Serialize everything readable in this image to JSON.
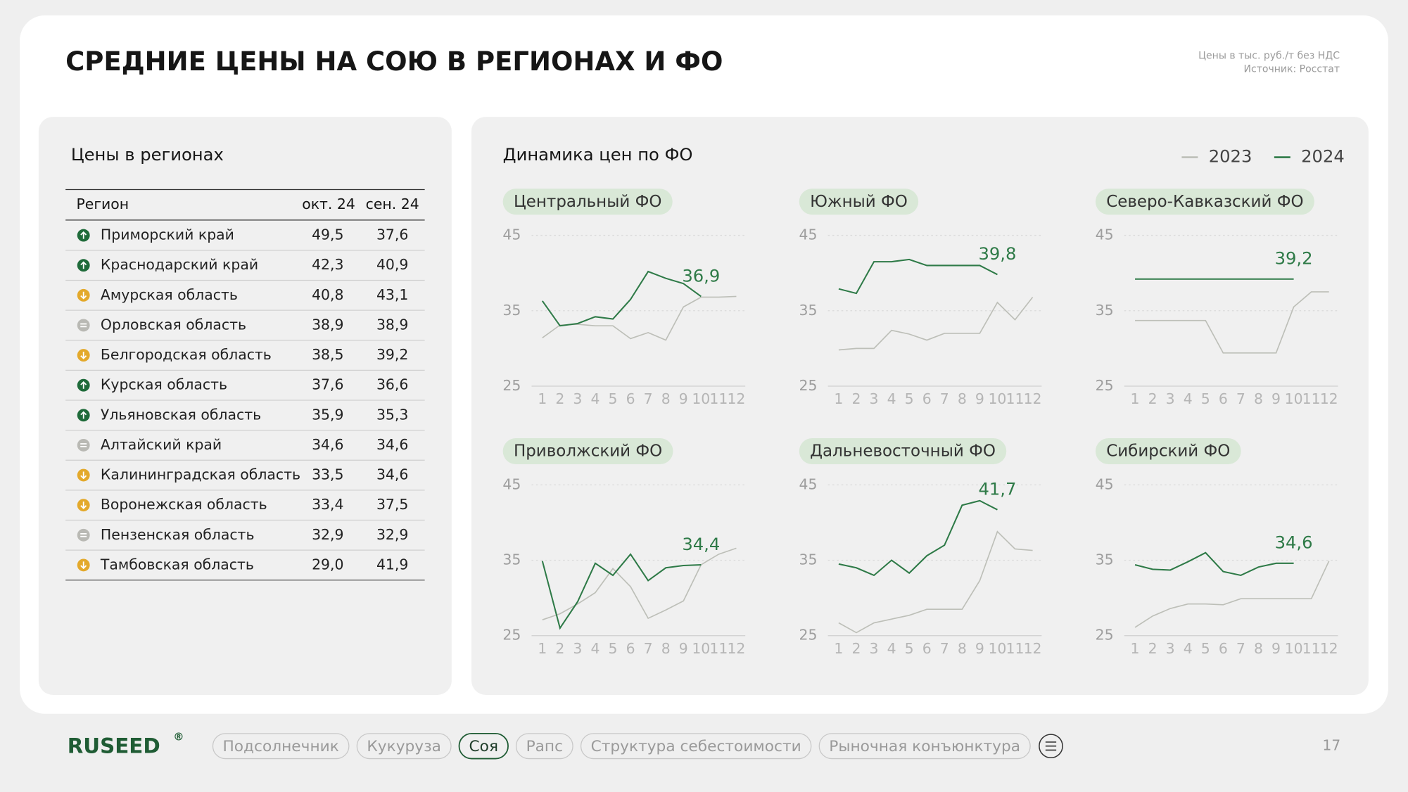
{
  "title": "СРЕДНИЕ ЦЕНЫ НА СОЮ В РЕГИОНАХ И ФО",
  "notes": [
    "Цены в тыс. руб./т без НДС",
    "Источник: Росстат"
  ],
  "table": {
    "title": "Цены в регионах",
    "header": [
      "Регион",
      "окт. 24",
      "сен. 24"
    ],
    "rows": [
      {
        "trend": "up",
        "cells": [
          "Приморский край",
          "49,5",
          "37,6"
        ]
      },
      {
        "trend": "up",
        "cells": [
          "Краснодарский край",
          "42,3",
          "40,9"
        ]
      },
      {
        "trend": "down",
        "cells": [
          "Амурская область",
          "40,8",
          "43,1"
        ]
      },
      {
        "trend": "flat",
        "cells": [
          "Орловская область",
          "38,9",
          "38,9"
        ]
      },
      {
        "trend": "down",
        "cells": [
          "Белгородская область",
          "38,5",
          "39,2"
        ]
      },
      {
        "trend": "up",
        "cells": [
          "Курская область",
          "37,6",
          "36,6"
        ]
      },
      {
        "trend": "up",
        "cells": [
          "Ульяновская область",
          "35,9",
          "35,3"
        ]
      },
      {
        "trend": "flat",
        "cells": [
          "Алтайский край",
          "34,6",
          "34,6"
        ]
      },
      {
        "trend": "down",
        "cells": [
          "Калининградская область",
          "33,5",
          "34,6"
        ]
      },
      {
        "trend": "down",
        "cells": [
          "Воронежская область",
          "33,4",
          "37,5"
        ]
      },
      {
        "trend": "flat",
        "cells": [
          "Пензенская область",
          "32,9",
          "32,9"
        ]
      },
      {
        "trend": "down",
        "cells": [
          "Тамбовская область",
          "29,0",
          "41,9"
        ]
      }
    ]
  },
  "charts_title": "Динамика цен по ФО",
  "chart_data": [
    {
      "type": "line",
      "title": "Центральный ФО",
      "x": [
        1,
        2,
        3,
        4,
        5,
        6,
        7,
        8,
        9,
        10,
        11,
        12
      ],
      "xlim": [
        1,
        12
      ],
      "xticks": [
        1,
        2,
        3,
        4,
        5,
        6,
        7,
        8,
        9,
        10,
        11,
        12
      ],
      "ylim": [
        25,
        45
      ],
      "yticks": [
        25,
        35,
        45
      ],
      "grid": true,
      "series": [
        {
          "name": "2023",
          "color": "#bdbfb8",
          "values": [
            31.4,
            33.1,
            33.2,
            33.0,
            33.0,
            31.3,
            32.1,
            31.1,
            35.5,
            36.8,
            36.8,
            36.9
          ]
        },
        {
          "name": "2024",
          "color": "#2e7a47",
          "values": [
            36.3,
            33.0,
            33.3,
            34.2,
            33.9,
            36.5,
            40.2,
            39.3,
            38.6,
            36.9,
            null,
            null
          ],
          "value_labels": [
            null,
            null,
            null,
            null,
            null,
            null,
            null,
            null,
            null,
            "36,9",
            null,
            null
          ]
        }
      ]
    },
    {
      "type": "line",
      "title": "Южный ФО",
      "x": [
        1,
        2,
        3,
        4,
        5,
        6,
        7,
        8,
        9,
        10,
        11,
        12
      ],
      "xlim": [
        1,
        12
      ],
      "xticks": [
        1,
        2,
        3,
        4,
        5,
        6,
        7,
        8,
        9,
        10,
        11,
        12
      ],
      "ylim": [
        25,
        45
      ],
      "yticks": [
        25,
        35,
        45
      ],
      "grid": true,
      "series": [
        {
          "name": "2023",
          "color": "#bdbfb8",
          "values": [
            29.8,
            30.0,
            30.0,
            32.4,
            31.9,
            31.1,
            32.0,
            32.0,
            32.0,
            36.1,
            33.8,
            36.8
          ]
        },
        {
          "name": "2024",
          "color": "#2e7a47",
          "values": [
            37.9,
            37.3,
            41.5,
            41.5,
            41.8,
            41.0,
            41.0,
            41.0,
            41.0,
            39.8,
            null,
            null
          ],
          "value_labels": [
            null,
            null,
            null,
            null,
            null,
            null,
            null,
            null,
            null,
            "39,8",
            null,
            null
          ]
        }
      ]
    },
    {
      "type": "line",
      "title": "Северо-Кавказский ФО",
      "x": [
        1,
        2,
        3,
        4,
        5,
        6,
        7,
        8,
        9,
        10,
        11,
        12
      ],
      "xlim": [
        1,
        12
      ],
      "xticks": [
        1,
        2,
        3,
        4,
        5,
        6,
        7,
        8,
        9,
        10,
        11,
        12
      ],
      "ylim": [
        25,
        45
      ],
      "yticks": [
        25,
        35,
        45
      ],
      "grid": true,
      "series": [
        {
          "name": "2023",
          "color": "#bdbfb8",
          "values": [
            33.7,
            33.7,
            33.7,
            33.7,
            33.7,
            29.4,
            29.4,
            29.4,
            29.4,
            35.5,
            37.5,
            37.5
          ]
        },
        {
          "name": "2024",
          "color": "#2e7a47",
          "values": [
            39.2,
            39.2,
            39.2,
            39.2,
            39.2,
            39.2,
            39.2,
            39.2,
            39.2,
            39.2,
            null,
            null
          ],
          "value_labels": [
            null,
            null,
            null,
            null,
            null,
            null,
            null,
            null,
            null,
            "39,2",
            null,
            null
          ]
        }
      ]
    },
    {
      "type": "line",
      "title": "Приволжский ФО",
      "x": [
        1,
        2,
        3,
        4,
        5,
        6,
        7,
        8,
        9,
        10,
        11,
        12
      ],
      "xlim": [
        1,
        12
      ],
      "xticks": [
        1,
        2,
        3,
        4,
        5,
        6,
        7,
        8,
        9,
        10,
        11,
        12
      ],
      "ylim": [
        25,
        45
      ],
      "yticks": [
        25,
        35,
        45
      ],
      "grid": true,
      "series": [
        {
          "name": "2023",
          "color": "#bdbfb8",
          "values": [
            27.1,
            27.9,
            29.2,
            30.7,
            33.9,
            31.5,
            27.3,
            28.4,
            29.6,
            34.4,
            35.8,
            36.6
          ]
        },
        {
          "name": "2024",
          "color": "#2e7a47",
          "values": [
            34.9,
            26.0,
            29.5,
            34.6,
            33.0,
            35.8,
            32.3,
            34.0,
            34.3,
            34.4,
            null,
            null
          ],
          "value_labels": [
            null,
            null,
            null,
            null,
            null,
            null,
            null,
            null,
            null,
            "34,4",
            null,
            null
          ]
        }
      ]
    },
    {
      "type": "line",
      "title": "Дальневосточный ФО",
      "x": [
        1,
        2,
        3,
        4,
        5,
        6,
        7,
        8,
        9,
        10,
        11,
        12
      ],
      "xlim": [
        1,
        12
      ],
      "xticks": [
        1,
        2,
        3,
        4,
        5,
        6,
        7,
        8,
        9,
        10,
        11,
        12
      ],
      "ylim": [
        25,
        45
      ],
      "yticks": [
        25,
        35,
        45
      ],
      "grid": true,
      "series": [
        {
          "name": "2023",
          "color": "#bdbfb8",
          "values": [
            26.7,
            25.4,
            26.7,
            27.2,
            27.7,
            28.5,
            28.5,
            28.5,
            32.3,
            38.8,
            36.5,
            36.3
          ]
        },
        {
          "name": "2024",
          "color": "#2e7a47",
          "values": [
            34.5,
            34.0,
            33.0,
            35.0,
            33.3,
            35.6,
            37.0,
            42.3,
            42.9,
            41.7,
            null,
            null
          ],
          "value_labels": [
            null,
            null,
            null,
            null,
            null,
            null,
            null,
            null,
            null,
            "41,7",
            null,
            null
          ]
        }
      ]
    },
    {
      "type": "line",
      "title": "Сибирский ФО",
      "x": [
        1,
        2,
        3,
        4,
        5,
        6,
        7,
        8,
        9,
        10,
        11,
        12
      ],
      "xlim": [
        1,
        12
      ],
      "xticks": [
        1,
        2,
        3,
        4,
        5,
        6,
        7,
        8,
        9,
        10,
        11,
        12
      ],
      "ylim": [
        25,
        45
      ],
      "yticks": [
        25,
        35,
        45
      ],
      "grid": true,
      "series": [
        {
          "name": "2023",
          "color": "#bdbfb8",
          "values": [
            26.1,
            27.6,
            28.6,
            29.2,
            29.2,
            29.1,
            29.9,
            29.9,
            29.9,
            29.9,
            29.9,
            34.9
          ]
        },
        {
          "name": "2024",
          "color": "#2e7a47",
          "values": [
            34.4,
            33.8,
            33.7,
            34.8,
            36.0,
            33.5,
            33.0,
            34.1,
            34.6,
            34.6,
            null,
            null
          ],
          "value_labels": [
            null,
            null,
            null,
            null,
            null,
            null,
            null,
            null,
            null,
            "34,6",
            null,
            null
          ]
        }
      ]
    }
  ],
  "logo": "RUSEED",
  "logo_mark": "®",
  "nav": {
    "items": [
      "Подсолнечник",
      "Кукуруза",
      "Соя",
      "Рапс",
      "Структура себестоимости",
      "Рыночная конъюнктура"
    ],
    "active": "Соя"
  },
  "page_number": "17"
}
